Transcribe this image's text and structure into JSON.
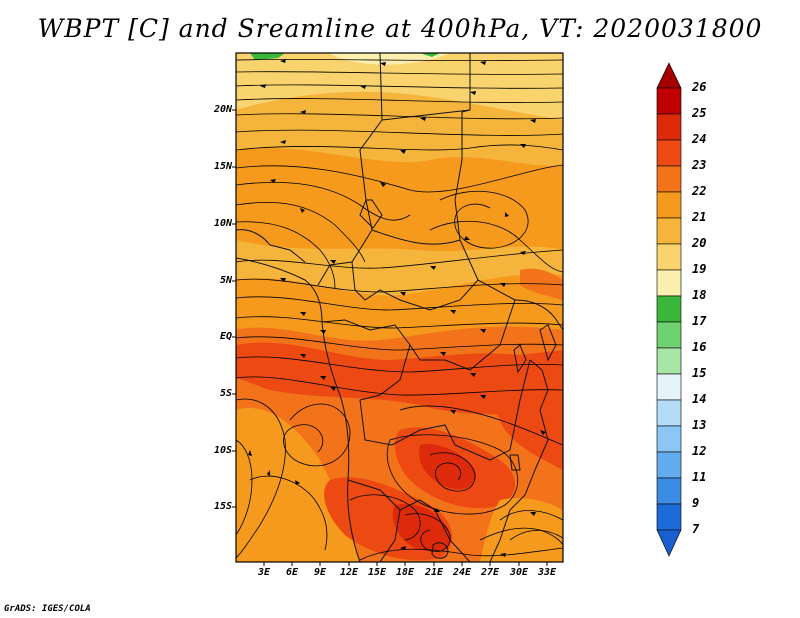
{
  "title": "WBPT [C] and Sreamline at 400hPa, VT: 2020031800",
  "latitude_labels": [
    "20N",
    "15N",
    "10N",
    "5N",
    "EQ",
    "5S",
    "10S",
    "15S"
  ],
  "longitude_labels": [
    "3E",
    "6E",
    "9E",
    "12E",
    "15E",
    "18E",
    "21E",
    "24E",
    "27E",
    "30E",
    "33E"
  ],
  "colorbar": {
    "labels": [
      "26",
      "25",
      "24",
      "23",
      "22",
      "21",
      "20",
      "19",
      "18",
      "17",
      "16",
      "15",
      "14",
      "13",
      "12",
      "11",
      "9",
      "7"
    ],
    "colors": [
      "#a50000",
      "#c00000",
      "#dc2a0b",
      "#ec4a12",
      "#f2731a",
      "#f59a1c",
      "#f5b43c",
      "#f8d36e",
      "#fbefb0",
      "#3bb83b",
      "#6fd06f",
      "#a8e6a8",
      "#e4f4fa",
      "#b4dcf7",
      "#8cc6f5",
      "#64acf0",
      "#3c8ce6",
      "#1e6ad8"
    ]
  },
  "credit": "GrADS: IGES/COLA"
}
